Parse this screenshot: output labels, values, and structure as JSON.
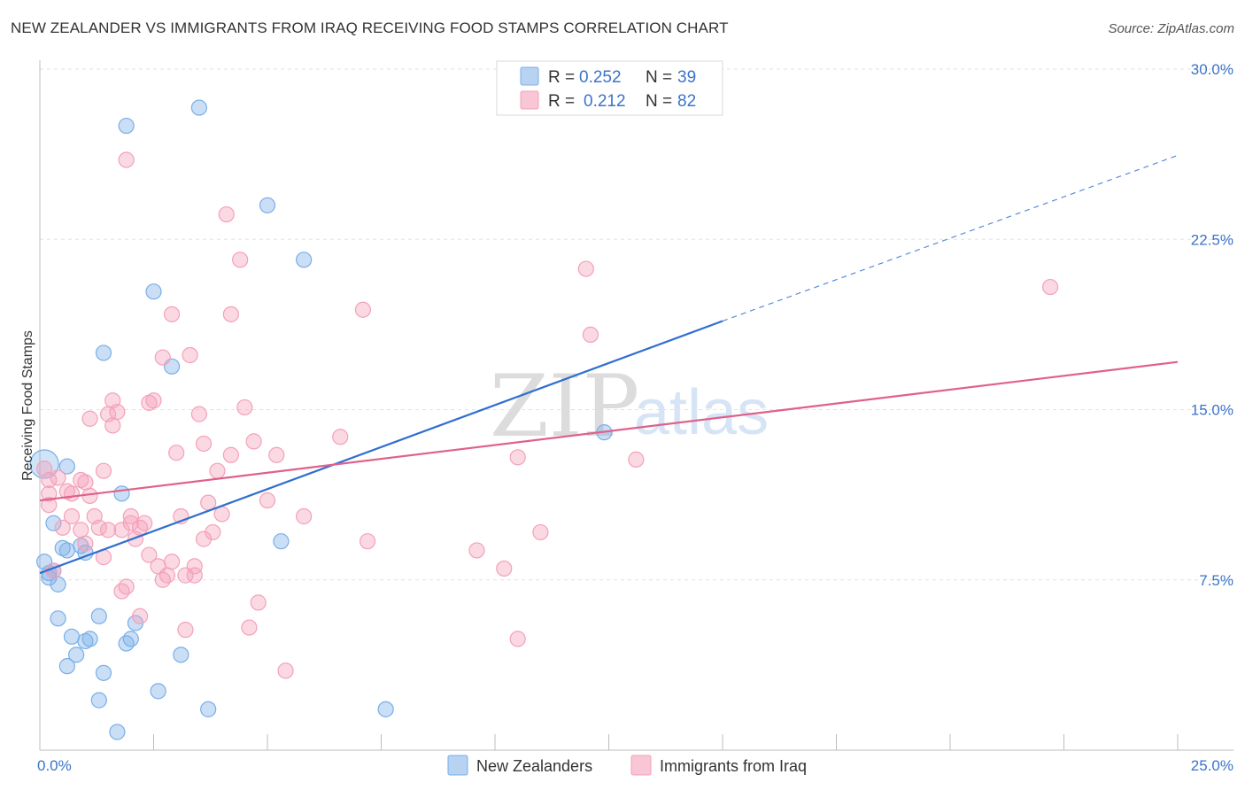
{
  "title": "NEW ZEALANDER VS IMMIGRANTS FROM IRAQ RECEIVING FOOD STAMPS CORRELATION CHART",
  "source": "Source: ZipAtlas.com",
  "watermark": {
    "part1": "ZIP",
    "part2": "atlas"
  },
  "colors": {
    "blue": "#7aaee8",
    "blue_line": "#2f6fcf",
    "pink": "#f4a0ba",
    "pink_line": "#e0608a",
    "axis_text": "#3a74c9"
  },
  "legend": {
    "rows": [
      {
        "r_label": "R = ",
        "r_value": "0.252",
        "n_label": "N = ",
        "n_value": "39"
      },
      {
        "r_label": "R = ",
        "r_value": "0.212",
        "n_label": "N = ",
        "n_value": "82"
      }
    ]
  },
  "chart_data": {
    "type": "scatter",
    "title": "NEW ZEALANDER VS IMMIGRANTS FROM IRAQ RECEIVING FOOD STAMPS CORRELATION CHART",
    "xlabel": "",
    "ylabel": "Receiving Food Stamps",
    "xlim": [
      0,
      25
    ],
    "ylim": [
      0,
      30
    ],
    "x_ticks": [
      {
        "value": 0,
        "label": "0.0%"
      },
      {
        "value": 25,
        "label": "25.0%"
      }
    ],
    "y_ticks": [
      {
        "value": 7.5,
        "label": "7.5%"
      },
      {
        "value": 15,
        "label": "15.0%"
      },
      {
        "value": 22.5,
        "label": "22.5%"
      },
      {
        "value": 30,
        "label": "30.0%"
      }
    ],
    "grid": true,
    "legend_position": "top-center",
    "series": [
      {
        "name": "New Zealanders",
        "color": "#7aaee8",
        "trend": {
          "x": [
            0,
            15
          ],
          "y": [
            7.8,
            18.9
          ],
          "dashed_to": [
            25,
            26.2
          ]
        },
        "points": [
          [
            0.1,
            12.6
          ],
          [
            0.1,
            8.3
          ],
          [
            0.2,
            7.6
          ],
          [
            0.3,
            7.9
          ],
          [
            0.4,
            7.3
          ],
          [
            0.3,
            10.0
          ],
          [
            0.6,
            12.5
          ],
          [
            0.5,
            8.9
          ],
          [
            0.6,
            8.8
          ],
          [
            0.9,
            9.0
          ],
          [
            1.0,
            8.7
          ],
          [
            1.8,
            11.3
          ],
          [
            1.4,
            17.5
          ],
          [
            1.9,
            27.5
          ],
          [
            2.5,
            20.2
          ],
          [
            2.9,
            16.9
          ],
          [
            3.5,
            28.3
          ],
          [
            5.0,
            24.0
          ],
          [
            5.8,
            21.6
          ],
          [
            5.3,
            9.2
          ],
          [
            0.4,
            5.8
          ],
          [
            0.7,
            5.0
          ],
          [
            1.0,
            4.8
          ],
          [
            1.1,
            4.9
          ],
          [
            0.8,
            4.2
          ],
          [
            0.6,
            3.7
          ],
          [
            1.3,
            5.9
          ],
          [
            1.4,
            3.4
          ],
          [
            1.3,
            2.2
          ],
          [
            1.9,
            4.7
          ],
          [
            2.0,
            4.9
          ],
          [
            2.1,
            5.6
          ],
          [
            2.6,
            2.6
          ],
          [
            3.1,
            4.2
          ],
          [
            3.7,
            1.8
          ],
          [
            1.7,
            0.8
          ],
          [
            7.6,
            1.8
          ],
          [
            12.4,
            14.0
          ],
          [
            0.2,
            7.8
          ]
        ]
      },
      {
        "name": "Immigrants from Iraq",
        "color": "#f4a0ba",
        "trend": {
          "x": [
            0,
            25
          ],
          "y": [
            11.0,
            17.1
          ]
        },
        "points": [
          [
            0.1,
            12.4
          ],
          [
            0.2,
            11.9
          ],
          [
            0.2,
            11.3
          ],
          [
            0.2,
            10.8
          ],
          [
            0.4,
            12.0
          ],
          [
            0.5,
            9.8
          ],
          [
            0.6,
            11.4
          ],
          [
            0.7,
            10.3
          ],
          [
            0.7,
            11.3
          ],
          [
            0.9,
            9.7
          ],
          [
            0.9,
            11.9
          ],
          [
            1.0,
            11.8
          ],
          [
            1.0,
            9.1
          ],
          [
            1.1,
            11.2
          ],
          [
            1.1,
            14.6
          ],
          [
            1.2,
            10.3
          ],
          [
            1.3,
            9.8
          ],
          [
            1.4,
            8.5
          ],
          [
            1.4,
            12.3
          ],
          [
            1.5,
            9.7
          ],
          [
            1.5,
            14.8
          ],
          [
            1.6,
            14.3
          ],
          [
            1.6,
            15.4
          ],
          [
            1.7,
            14.9
          ],
          [
            1.8,
            7.0
          ],
          [
            1.8,
            9.7
          ],
          [
            1.9,
            7.2
          ],
          [
            2.0,
            10.3
          ],
          [
            2.0,
            10.0
          ],
          [
            2.1,
            9.3
          ],
          [
            2.2,
            5.9
          ],
          [
            2.2,
            9.8
          ],
          [
            2.3,
            10.0
          ],
          [
            2.4,
            8.6
          ],
          [
            2.4,
            15.3
          ],
          [
            2.5,
            15.4
          ],
          [
            2.6,
            8.1
          ],
          [
            2.7,
            7.5
          ],
          [
            2.7,
            17.3
          ],
          [
            2.8,
            7.7
          ],
          [
            2.9,
            8.3
          ],
          [
            2.9,
            19.2
          ],
          [
            3.0,
            13.1
          ],
          [
            3.1,
            10.3
          ],
          [
            3.2,
            5.3
          ],
          [
            3.2,
            7.7
          ],
          [
            3.3,
            17.4
          ],
          [
            3.4,
            8.1
          ],
          [
            3.4,
            7.7
          ],
          [
            3.5,
            14.8
          ],
          [
            3.6,
            13.5
          ],
          [
            3.6,
            9.3
          ],
          [
            3.7,
            10.9
          ],
          [
            3.8,
            9.6
          ],
          [
            3.9,
            12.3
          ],
          [
            4.0,
            10.4
          ],
          [
            4.1,
            23.6
          ],
          [
            4.2,
            13.0
          ],
          [
            4.2,
            19.2
          ],
          [
            4.4,
            21.6
          ],
          [
            4.5,
            15.1
          ],
          [
            4.6,
            5.4
          ],
          [
            4.7,
            13.6
          ],
          [
            4.8,
            6.5
          ],
          [
            5.0,
            11.0
          ],
          [
            5.2,
            13.0
          ],
          [
            5.4,
            3.5
          ],
          [
            5.8,
            10.3
          ],
          [
            6.6,
            13.8
          ],
          [
            7.1,
            19.4
          ],
          [
            7.2,
            9.2
          ],
          [
            1.9,
            26.0
          ],
          [
            9.6,
            8.8
          ],
          [
            10.2,
            8.0
          ],
          [
            10.5,
            12.9
          ],
          [
            10.5,
            4.9
          ],
          [
            11.0,
            9.6
          ],
          [
            12.0,
            21.2
          ],
          [
            12.1,
            18.3
          ],
          [
            13.1,
            12.8
          ],
          [
            22.2,
            20.4
          ],
          [
            0.3,
            7.9
          ]
        ]
      }
    ]
  }
}
